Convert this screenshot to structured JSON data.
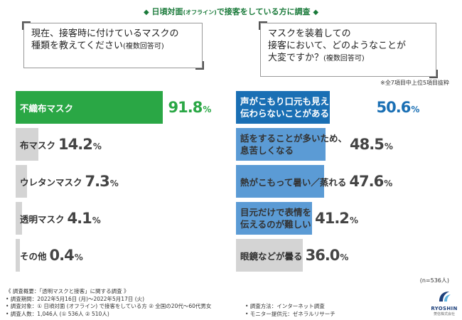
{
  "title": {
    "diamond": "◆",
    "main_prefix": "日頃対面",
    "paren": "(オフライン)",
    "main_suffix": "で接客をしている方に調査"
  },
  "questions": {
    "q1": {
      "line1": "現在、接客時に付けているマスクの",
      "line2": "種類を教えてください",
      "note": "(複数回答可)"
    },
    "q2": {
      "line1": "マスクを装着しての",
      "line2": "接客において、どのようなことが",
      "line3": "大変ですか？",
      "note": "(複数回答可)"
    }
  },
  "subnote": "※全7項目中上位5項目抜粋",
  "n_label": "(n=536人)",
  "chart_data": [
    {
      "type": "bar",
      "orientation": "horizontal",
      "title": "現在、接客時に付けているマスクの種類を教えてください(複数回答可)",
      "unit": "%",
      "categories": [
        "不織布マスク",
        "布マスク",
        "ウレタンマスク",
        "透明マスク",
        "その他"
      ],
      "values": [
        91.8,
        14.2,
        7.3,
        4.1,
        0.4
      ],
      "value_labels": [
        {
          "num": "91.8",
          "pct": "%"
        },
        {
          "num": "14.2",
          "pct": "%"
        },
        {
          "num": "7.3",
          "pct": "%"
        },
        {
          "num": "4.1",
          "pct": "%"
        },
        {
          "num": "0.4",
          "pct": "%"
        }
      ],
      "highlight_color": "#2aa745",
      "other_color": "#d4d4d4"
    },
    {
      "type": "bar",
      "orientation": "horizontal",
      "title": "マスクを装着しての接客において、どのようなことが大変ですか？(複数回答可)",
      "unit": "%",
      "categories": [
        [
          "声がこもり口元も見えないため、",
          "伝わらないことがある"
        ],
        [
          "話をすることが多いため、",
          "息苦しくなる"
        ],
        [
          "熱がこもって暑い／蒸れる"
        ],
        [
          "目元だけで表情を",
          "伝えるのが難しい"
        ],
        [
          "眼鏡などが曇る"
        ]
      ],
      "values": [
        50.6,
        48.5,
        47.6,
        41.2,
        36.0
      ],
      "value_labels": [
        {
          "num": "50.6",
          "pct": "%"
        },
        {
          "num": "48.5",
          "pct": "%"
        },
        {
          "num": "47.6",
          "pct": "%"
        },
        {
          "num": "41.2",
          "pct": "%"
        },
        {
          "num": "36.0",
          "pct": "%"
        }
      ],
      "highlight_color": "#1a6fb4",
      "other_color": "#5b9bd5",
      "last_color": "#d4d4d4"
    }
  ],
  "footer": {
    "overview": "《 調査概要：「透明マスクと接客」に関する調査 》",
    "period": "• 調査期間：2022年5月16日 (月)～2022年5月17日 (火)",
    "target": "• 調査対象：① 日頃対面 (オフライン) で接客をしている方 ② 全国の20代～60代男女",
    "count": "• 調査人数：1,046人 (① 536人 ② 510人)",
    "method": "• 調査方法：インターネット調査",
    "provider": "• モニター提供元：ゼネラルリサーチ"
  },
  "logo": {
    "brand": "RYOSHIN",
    "company": "菱信株式会社"
  }
}
